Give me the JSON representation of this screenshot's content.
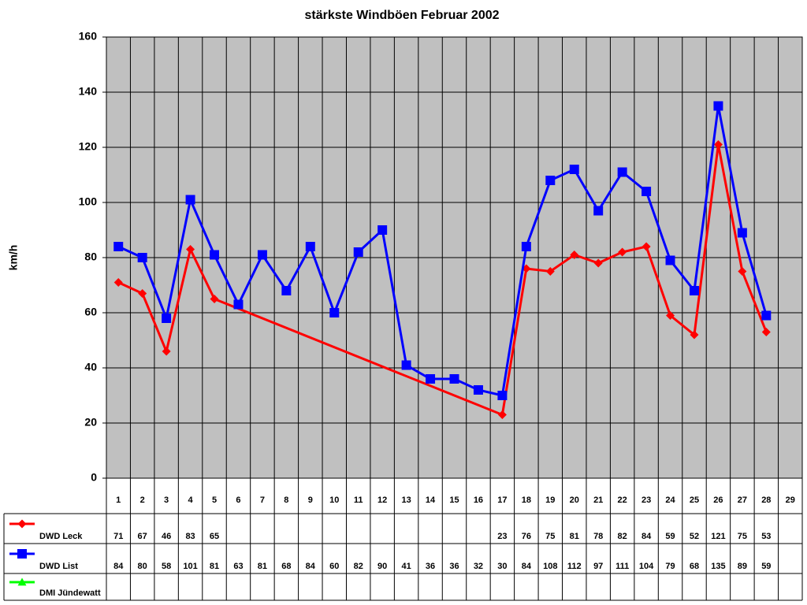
{
  "chart_data": {
    "type": "line",
    "title": "stärkste Windböen Februar 2002",
    "y_label": "km/h",
    "categories": [
      "1",
      "2",
      "3",
      "4",
      "5",
      "6",
      "7",
      "8",
      "9",
      "10",
      "11",
      "12",
      "13",
      "14",
      "15",
      "16",
      "17",
      "18",
      "19",
      "20",
      "21",
      "22",
      "23",
      "24",
      "25",
      "26",
      "27",
      "28",
      "29"
    ],
    "series": [
      {
        "name": "DWD Leck",
        "color": "#ff0000",
        "marker": "diamond",
        "values": [
          71,
          67,
          46,
          83,
          65,
          null,
          null,
          null,
          null,
          null,
          null,
          null,
          null,
          null,
          null,
          null,
          23,
          76,
          75,
          81,
          78,
          82,
          84,
          59,
          52,
          121,
          75,
          53,
          null
        ]
      },
      {
        "name": "DWD List",
        "color": "#0000ff",
        "marker": "square",
        "values": [
          84,
          80,
          58,
          101,
          81,
          63,
          81,
          68,
          84,
          60,
          82,
          90,
          41,
          36,
          36,
          32,
          30,
          84,
          108,
          112,
          97,
          111,
          104,
          79,
          68,
          135,
          89,
          59,
          null
        ]
      },
      {
        "name": "DMI Jündewatt",
        "color": "#00ff00",
        "marker": "triangle",
        "values": [
          null,
          null,
          null,
          null,
          null,
          null,
          null,
          null,
          null,
          null,
          null,
          null,
          null,
          null,
          null,
          null,
          null,
          null,
          null,
          null,
          null,
          null,
          null,
          null,
          null,
          null,
          null,
          null,
          null
        ]
      }
    ],
    "ylim": [
      0,
      160
    ],
    "yticks": [
      0,
      20,
      40,
      60,
      80,
      100,
      120,
      140,
      160
    ],
    "grid": true,
    "connect_gaps": true,
    "data_table": true
  }
}
